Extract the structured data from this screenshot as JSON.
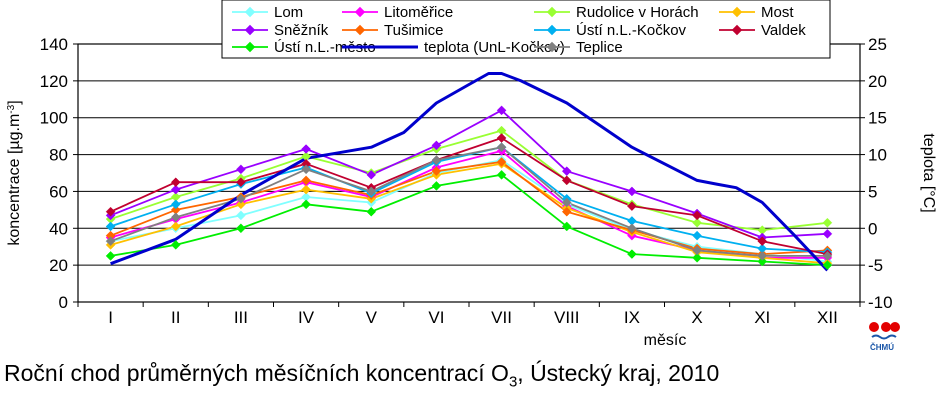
{
  "chart_data": {
    "type": "line",
    "caption": "Roční chod průměrných měsíčních koncentrací O",
    "caption_sub": "3",
    "caption_suffix": ", Ústecký kraj, 2010",
    "xlabel": "měsíc",
    "ylabel": "koncentrace [µg.m-3]",
    "ylabel_main": "koncentrace [µg.m",
    "ylabel_sup": "-3",
    "ylabel_end": "]",
    "y2label": "teplota [°C]",
    "categories": [
      "I",
      "II",
      "III",
      "IV",
      "V",
      "VI",
      "VII",
      "VIII",
      "IX",
      "X",
      "XI",
      "XII"
    ],
    "ylim": [
      0,
      140
    ],
    "yticks": [
      0,
      20,
      40,
      60,
      80,
      100,
      120,
      140
    ],
    "y2lim": [
      -10,
      25
    ],
    "y2ticks": [
      -10,
      -5,
      0,
      5,
      10,
      15,
      20,
      25
    ],
    "grid": true,
    "legend_position": "top",
    "logo_text": "ČHMÚ",
    "series": [
      {
        "name": "Lom",
        "color": "#80ffff",
        "marker": "diamond",
        "axis": "left",
        "values": [
          33,
          40,
          47,
          57,
          54,
          70,
          77,
          53,
          39,
          30,
          26,
          22
        ]
      },
      {
        "name": "Litoměřice",
        "color": "#ff00ff",
        "marker": "diamond",
        "axis": "left",
        "values": [
          35,
          45,
          54,
          65,
          57,
          73,
          82,
          52,
          36,
          28,
          24,
          24
        ]
      },
      {
        "name": "Rudolice v Horách",
        "color": "#99ff33",
        "marker": "diamond",
        "axis": "left",
        "values": [
          45,
          57,
          67,
          79,
          70,
          83,
          93,
          66,
          53,
          43,
          39,
          43
        ]
      },
      {
        "name": "Most",
        "color": "#ffc000",
        "marker": "diamond",
        "axis": "left",
        "values": [
          31,
          41,
          53,
          61,
          56,
          69,
          75,
          51,
          38,
          27,
          24,
          21
        ]
      },
      {
        "name": "Sněžník",
        "color": "#9900ff",
        "marker": "diamond",
        "axis": "left",
        "values": [
          47,
          61,
          72,
          83,
          69,
          85,
          104,
          71,
          60,
          48,
          35,
          37
        ]
      },
      {
        "name": "Tušimice",
        "color": "#ff6600",
        "marker": "diamond",
        "axis": "left",
        "values": [
          36,
          50,
          57,
          66,
          58,
          71,
          76,
          49,
          39,
          29,
          26,
          28
        ]
      },
      {
        "name": "Ústí n.L.-Kočkov",
        "color": "#00b0f0",
        "marker": "diamond",
        "axis": "left",
        "values": [
          41,
          53,
          64,
          73,
          59,
          76,
          84,
          56,
          44,
          36,
          29,
          27
        ]
      },
      {
        "name": "Valdek",
        "color": "#c00030",
        "marker": "diamond",
        "axis": "left",
        "values": [
          49,
          65,
          65,
          75,
          62,
          77,
          89,
          66,
          52,
          47,
          33,
          26
        ]
      },
      {
        "name": "Ústí n.L.-město",
        "color": "#00ee00",
        "marker": "diamond",
        "axis": "left",
        "values": [
          25,
          31,
          40,
          53,
          49,
          63,
          69,
          41,
          26,
          24,
          22,
          20
        ]
      },
      {
        "name": "teplota (UnL-Kočkov)",
        "color": "#0000cc",
        "marker": "none",
        "axis": "right",
        "x": [
          1,
          2,
          3,
          4,
          5,
          5.5,
          6,
          6.5,
          6.8,
          7,
          7.3,
          8,
          9,
          10,
          10.3,
          10.6,
          11,
          11.5,
          12
        ],
        "values": [
          -4.8,
          -1.5,
          4.5,
          9.5,
          11,
          13,
          17,
          19.5,
          21,
          21,
          20,
          17,
          11,
          6.5,
          6,
          5.5,
          3.5,
          -1,
          -5.7
        ]
      },
      {
        "name": "Teplice",
        "color": "#808080",
        "marker": "diamond",
        "axis": "left",
        "values": [
          33,
          46,
          56,
          72,
          60,
          77,
          84,
          54,
          40,
          28,
          25,
          25
        ]
      }
    ]
  }
}
